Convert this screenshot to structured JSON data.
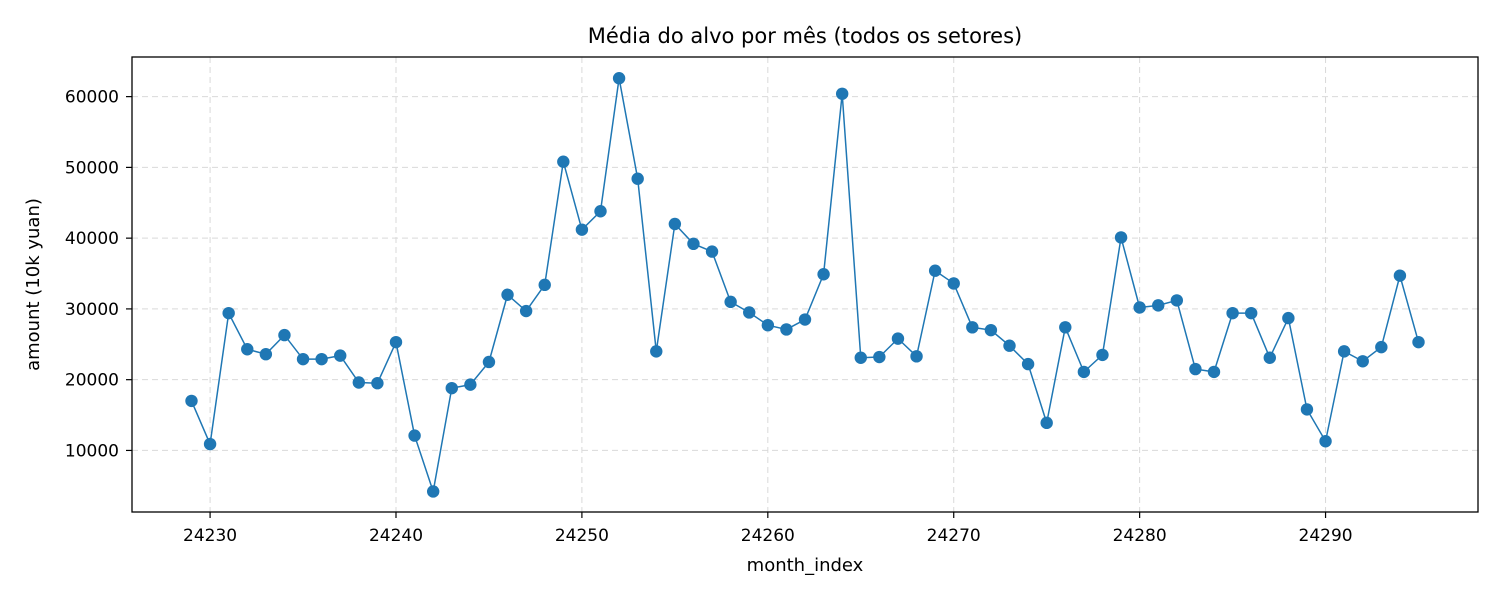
{
  "chart_data": {
    "type": "line",
    "title": "Média do alvo por mês (todos os setores)",
    "xlabel": "month_index",
    "ylabel": "amount (10k yuan)",
    "xlim": [
      24225.8,
      24298.2
    ],
    "ylim": [
      1300,
      65600
    ],
    "x_ticks": [
      24230,
      24240,
      24250,
      24260,
      24270,
      24280,
      24290
    ],
    "y_ticks": [
      10000,
      20000,
      30000,
      40000,
      50000,
      60000
    ],
    "grid": true,
    "color": "#1f77b4",
    "series": [
      {
        "x": [
          24229,
          24230,
          24231,
          24232,
          24233,
          24234,
          24235,
          24236,
          24237,
          24238,
          24239,
          24240,
          24241,
          24242,
          24243,
          24244,
          24245,
          24246,
          24247,
          24248,
          24249,
          24250,
          24251,
          24252,
          24253,
          24254,
          24255,
          24256,
          24257,
          24258,
          24259,
          24260,
          24261,
          24262,
          24263,
          24264,
          24265,
          24266,
          24267,
          24268,
          24269,
          24270,
          24271,
          24272,
          24273,
          24274,
          24275,
          24276,
          24277,
          24278,
          24279,
          24280,
          24281,
          24282,
          24283,
          24284,
          24285,
          24286,
          24287,
          24288,
          24289,
          24290,
          24291,
          24292,
          24293,
          24294,
          24295
        ],
        "values": [
          17000,
          10900,
          29400,
          24300,
          23600,
          26300,
          22900,
          22900,
          23400,
          19600,
          19500,
          25300,
          12100,
          4200,
          18800,
          19300,
          22500,
          32000,
          29700,
          33400,
          50800,
          41200,
          43800,
          62600,
          48400,
          24000,
          42000,
          39200,
          38100,
          31000,
          29500,
          27700,
          27100,
          28500,
          34900,
          60400,
          23100,
          23200,
          25800,
          23300,
          35400,
          33600,
          27400,
          27000,
          24800,
          22200,
          13900,
          27400,
          21100,
          23500,
          40100,
          30200,
          30500,
          31200,
          21500,
          21100,
          29400,
          29400,
          23100,
          28700,
          15800,
          11300,
          24000,
          22600,
          24600,
          34700,
          25300
        ]
      }
    ]
  }
}
